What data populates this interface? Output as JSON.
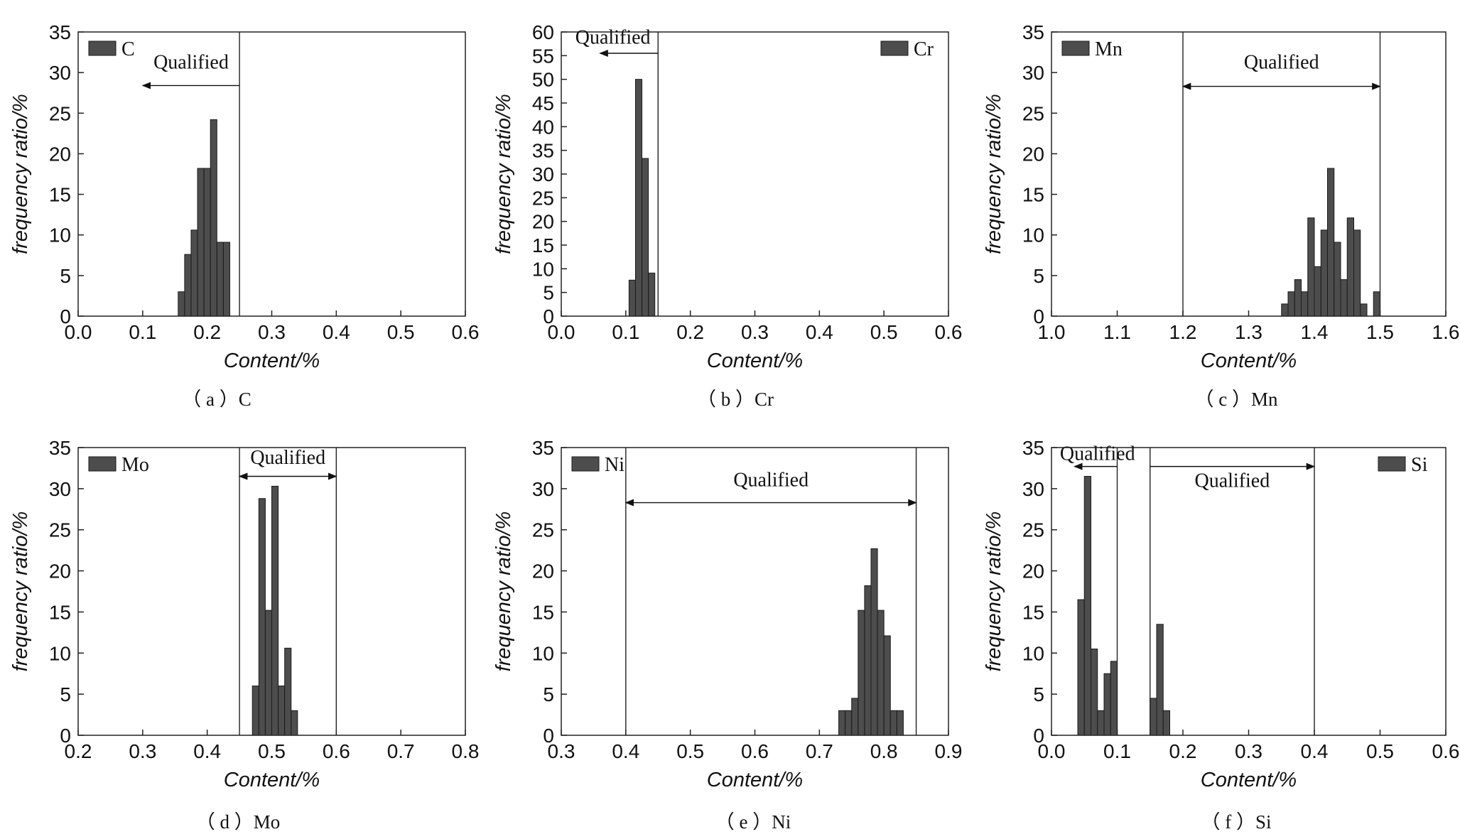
{
  "chart_data": [
    {
      "id": "a",
      "type": "bar",
      "caption": "（ a ）C",
      "legend": "C",
      "legend_position": "top-left",
      "xlabel": "Content/%",
      "ylabel": "frequency ratio/%",
      "xlim": [
        0.0,
        0.6
      ],
      "ylim": [
        0,
        35
      ],
      "xticks": [
        "0.0",
        "0.1",
        "0.2",
        "0.3",
        "0.4",
        "0.5",
        "0.6"
      ],
      "yticks": [
        "0",
        "5",
        "10",
        "15",
        "20",
        "25",
        "30",
        "35"
      ],
      "bar_width": 0.01,
      "bars": [
        {
          "x": 0.16,
          "y": 3
        },
        {
          "x": 0.17,
          "y": 7.6
        },
        {
          "x": 0.18,
          "y": 10.6
        },
        {
          "x": 0.19,
          "y": 18.2
        },
        {
          "x": 0.2,
          "y": 18.2
        },
        {
          "x": 0.21,
          "y": 24.2
        },
        {
          "x": 0.22,
          "y": 9.1
        },
        {
          "x": 0.23,
          "y": 9.1
        }
      ],
      "limits": [
        0.25
      ],
      "annotations": [
        {
          "text": "Qualified",
          "arrow_from": 0.25,
          "arrow_to": 0.1,
          "arrow_y": 28.4,
          "label_x": 0.175,
          "label_y": 30.5
        }
      ]
    },
    {
      "id": "b",
      "type": "bar",
      "caption": "（ b ）Cr",
      "legend": "Cr",
      "legend_position": "top-right",
      "xlabel": "Content/%",
      "ylabel": "frequency ratio/%",
      "xlim": [
        0.0,
        0.6
      ],
      "ylim": [
        0,
        60
      ],
      "xticks": [
        "0.0",
        "0.1",
        "0.2",
        "0.3",
        "0.4",
        "0.5",
        "0.6"
      ],
      "yticks": [
        "0",
        "5",
        "10",
        "15",
        "20",
        "25",
        "30",
        "35",
        "40",
        "45",
        "50",
        "55",
        "60"
      ],
      "bar_width": 0.01,
      "bars": [
        {
          "x": 0.11,
          "y": 7.6
        },
        {
          "x": 0.12,
          "y": 50
        },
        {
          "x": 0.13,
          "y": 33.3
        },
        {
          "x": 0.14,
          "y": 9.1
        }
      ],
      "limits": [
        0.15
      ],
      "annotations": [
        {
          "text": "Qualified",
          "arrow_from": 0.15,
          "arrow_to": 0.06,
          "arrow_y": 55.5,
          "label_x": 0.08,
          "label_y": 57.5
        }
      ]
    },
    {
      "id": "c",
      "type": "bar",
      "caption": "（ c ）Mn",
      "legend": "Mn",
      "legend_position": "top-left",
      "xlabel": "Content/%",
      "ylabel": "frequency ratio/%",
      "xlim": [
        1.0,
        1.6
      ],
      "ylim": [
        0,
        35
      ],
      "xticks": [
        "1.0",
        "1.1",
        "1.2",
        "1.3",
        "1.4",
        "1.5",
        "1.6"
      ],
      "yticks": [
        "0",
        "5",
        "10",
        "15",
        "20",
        "25",
        "30",
        "35"
      ],
      "bar_width": 0.01,
      "bars": [
        {
          "x": 1.355,
          "y": 1.5
        },
        {
          "x": 1.365,
          "y": 3
        },
        {
          "x": 1.375,
          "y": 4.5
        },
        {
          "x": 1.385,
          "y": 3
        },
        {
          "x": 1.395,
          "y": 12.1
        },
        {
          "x": 1.405,
          "y": 6.1
        },
        {
          "x": 1.415,
          "y": 10.6
        },
        {
          "x": 1.425,
          "y": 18.2
        },
        {
          "x": 1.435,
          "y": 9.1
        },
        {
          "x": 1.445,
          "y": 4.5
        },
        {
          "x": 1.455,
          "y": 12.1
        },
        {
          "x": 1.465,
          "y": 10.6
        },
        {
          "x": 1.475,
          "y": 1.5
        },
        {
          "x": 1.495,
          "y": 3
        }
      ],
      "limits": [
        1.2,
        1.5
      ],
      "annotations": [
        {
          "text": "Qualified",
          "arrow_from": 1.2,
          "arrow_to": 1.5,
          "arrow_y": 28.3,
          "both_heads": true,
          "label_x": 1.35,
          "label_y": 30.5
        }
      ]
    },
    {
      "id": "d",
      "type": "bar",
      "caption": "（ d ）Mo",
      "legend": "Mo",
      "legend_position": "top-left",
      "xlabel": "Content/%",
      "ylabel": "frequency ratio/%",
      "xlim": [
        0.2,
        0.8
      ],
      "ylim": [
        0,
        35
      ],
      "xticks": [
        "0.2",
        "0.3",
        "0.4",
        "0.5",
        "0.6",
        "0.7",
        "0.8"
      ],
      "yticks": [
        "0",
        "5",
        "10",
        "15",
        "20",
        "25",
        "30",
        "35"
      ],
      "bar_width": 0.01,
      "bars": [
        {
          "x": 0.475,
          "y": 6
        },
        {
          "x": 0.485,
          "y": 28.8
        },
        {
          "x": 0.495,
          "y": 15.2
        },
        {
          "x": 0.505,
          "y": 30.3
        },
        {
          "x": 0.515,
          "y": 6
        },
        {
          "x": 0.525,
          "y": 10.6
        },
        {
          "x": 0.535,
          "y": 3
        }
      ],
      "limits": [
        0.45,
        0.6
      ],
      "annotations": [
        {
          "text": "Qualified",
          "arrow_from": 0.45,
          "arrow_to": 0.6,
          "arrow_y": 31.5,
          "both_heads": true,
          "label_x": 0.525,
          "label_y": 33
        }
      ]
    },
    {
      "id": "e",
      "type": "bar",
      "caption": "（ e ）Ni",
      "legend": "Ni",
      "legend_position": "top-left",
      "xlabel": "Content/%",
      "ylabel": "frequency ratio/%",
      "xlim": [
        0.3,
        0.9
      ],
      "ylim": [
        0,
        35
      ],
      "xticks": [
        "0.3",
        "0.4",
        "0.5",
        "0.6",
        "0.7",
        "0.8",
        "0.9"
      ],
      "yticks": [
        "0",
        "5",
        "10",
        "15",
        "20",
        "25",
        "30",
        "35"
      ],
      "bar_width": 0.01,
      "bars": [
        {
          "x": 0.735,
          "y": 3
        },
        {
          "x": 0.745,
          "y": 3
        },
        {
          "x": 0.755,
          "y": 4.5
        },
        {
          "x": 0.765,
          "y": 15.2
        },
        {
          "x": 0.775,
          "y": 18.2
        },
        {
          "x": 0.785,
          "y": 22.7
        },
        {
          "x": 0.795,
          "y": 15.2
        },
        {
          "x": 0.805,
          "y": 12.1
        },
        {
          "x": 0.815,
          "y": 3
        },
        {
          "x": 0.825,
          "y": 3
        }
      ],
      "limits": [
        0.4,
        0.85
      ],
      "annotations": [
        {
          "text": "Qualified",
          "arrow_from": 0.4,
          "arrow_to": 0.85,
          "arrow_y": 28.3,
          "both_heads": true,
          "label_x": 0.625,
          "label_y": 30.3
        }
      ]
    },
    {
      "id": "f",
      "type": "bar",
      "caption": "（ f ）Si",
      "legend": "Si",
      "legend_position": "top-right",
      "xlabel": "Content/%",
      "ylabel": "frequency ratio/%",
      "xlim": [
        0.0,
        0.6
      ],
      "ylim": [
        0,
        35
      ],
      "xticks": [
        "0.0",
        "0.1",
        "0.2",
        "0.3",
        "0.4",
        "0.5",
        "0.6"
      ],
      "yticks": [
        "0",
        "5",
        "10",
        "15",
        "20",
        "25",
        "30",
        "35"
      ],
      "bar_width": 0.01,
      "bars": [
        {
          "x": 0.045,
          "y": 16.5
        },
        {
          "x": 0.055,
          "y": 31.5
        },
        {
          "x": 0.065,
          "y": 10.5
        },
        {
          "x": 0.075,
          "y": 3
        },
        {
          "x": 0.085,
          "y": 7.5
        },
        {
          "x": 0.095,
          "y": 9
        },
        {
          "x": 0.155,
          "y": 4.5
        },
        {
          "x": 0.165,
          "y": 13.5
        },
        {
          "x": 0.175,
          "y": 3
        }
      ],
      "limits": [
        0.1,
        0.15,
        0.4
      ],
      "annotations": [
        {
          "text": "Qualified",
          "arrow_from": 0.1,
          "arrow_to": 0.035,
          "arrow_y": 32.7,
          "label_x": 0.07,
          "label_y": 33.5
        },
        {
          "text": "Qualified",
          "arrow_from": 0.15,
          "arrow_to": 0.4,
          "arrow_y": 32.7,
          "right_head_only": true,
          "label_x": 0.275,
          "label_y": 30.2
        }
      ]
    }
  ]
}
